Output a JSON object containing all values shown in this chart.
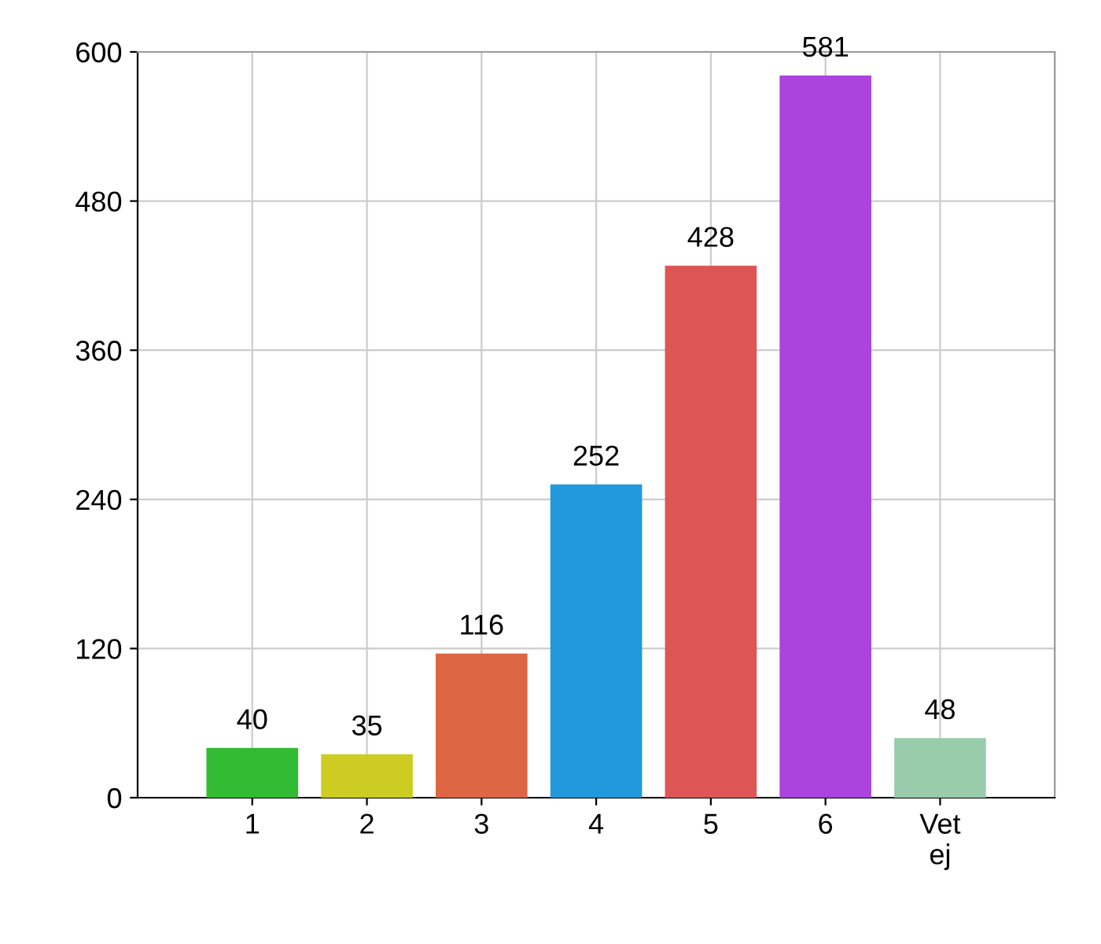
{
  "chart_data": {
    "type": "bar",
    "categories": [
      "1",
      "2",
      "3",
      "4",
      "5",
      "6",
      "Vet\nej"
    ],
    "values": [
      40,
      35,
      116,
      252,
      428,
      581,
      48
    ],
    "colors": [
      "#33bb33",
      "#cccc22",
      "#dd6644",
      "#2299dd",
      "#dd5555",
      "#aa44dd",
      "#99ccaa"
    ],
    "ylim": [
      0,
      600
    ],
    "yticks": [
      0,
      120,
      240,
      360,
      480,
      600
    ],
    "grid": true,
    "data_labels": true
  }
}
